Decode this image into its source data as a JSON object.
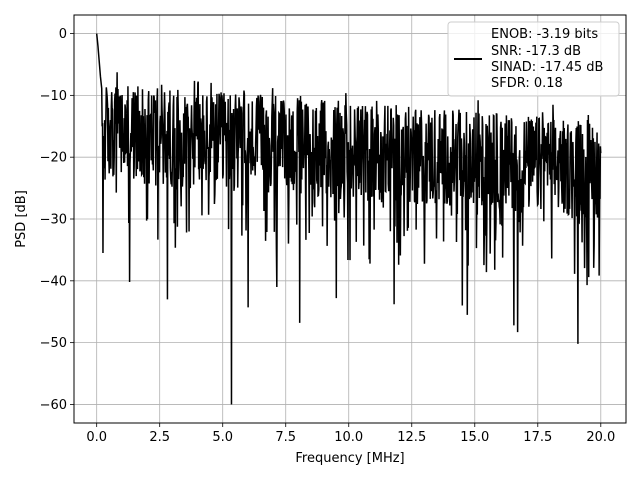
{
  "chart_data": {
    "type": "line",
    "title": "",
    "xlabel": "Frequency [MHz]",
    "ylabel": "PSD [dB]",
    "xlim": [
      -0.9,
      21.0
    ],
    "ylim": [
      -63,
      3
    ],
    "xticks": [
      0.0,
      2.5,
      5.0,
      7.5,
      10.0,
      12.5,
      15.0,
      17.5,
      20.0
    ],
    "xtick_labels": [
      "0.0",
      "2.5",
      "5.0",
      "7.5",
      "10.0",
      "12.5",
      "15.0",
      "17.5",
      "20.0"
    ],
    "yticks": [
      0,
      -10,
      -20,
      -30,
      -40,
      -50,
      -60
    ],
    "ytick_labels": [
      "0",
      "−10",
      "−20",
      "−30",
      "−40",
      "−50",
      "−60"
    ],
    "grid": true,
    "legend_position": "top-right",
    "legend_lines": [
      "ENOB: -3.19 bits",
      "SNR: -17.3 dB",
      "SINAD: -17.45 dB",
      "SFDR: 0.18"
    ],
    "series": [
      {
        "color": "#000000",
        "x_range": [
          0,
          20
        ],
        "noise_floor_start_db": -16,
        "noise_floor_end_db": -22,
        "peaks": [
          {
            "x": 0.0,
            "y": 0
          },
          {
            "x": 0.05,
            "y": -2
          },
          {
            "x": 0.15,
            "y": -7
          }
        ],
        "dips": [
          {
            "x": 0.25,
            "y": -35.5
          },
          {
            "x": 1.3,
            "y": -40.2
          },
          {
            "x": 2.8,
            "y": -43
          },
          {
            "x": 5.35,
            "y": -60
          },
          {
            "x": 6.0,
            "y": -44.3
          },
          {
            "x": 7.15,
            "y": -41
          },
          {
            "x": 8.05,
            "y": -46.8
          },
          {
            "x": 9.5,
            "y": -42.8
          },
          {
            "x": 11.8,
            "y": -43.8
          },
          {
            "x": 14.5,
            "y": -44
          },
          {
            "x": 14.7,
            "y": -45.5
          },
          {
            "x": 16.55,
            "y": -47.2
          },
          {
            "x": 16.7,
            "y": -48.3
          },
          {
            "x": 19.1,
            "y": -50.2
          },
          {
            "x": 19.45,
            "y": -40.7
          }
        ]
      }
    ]
  }
}
